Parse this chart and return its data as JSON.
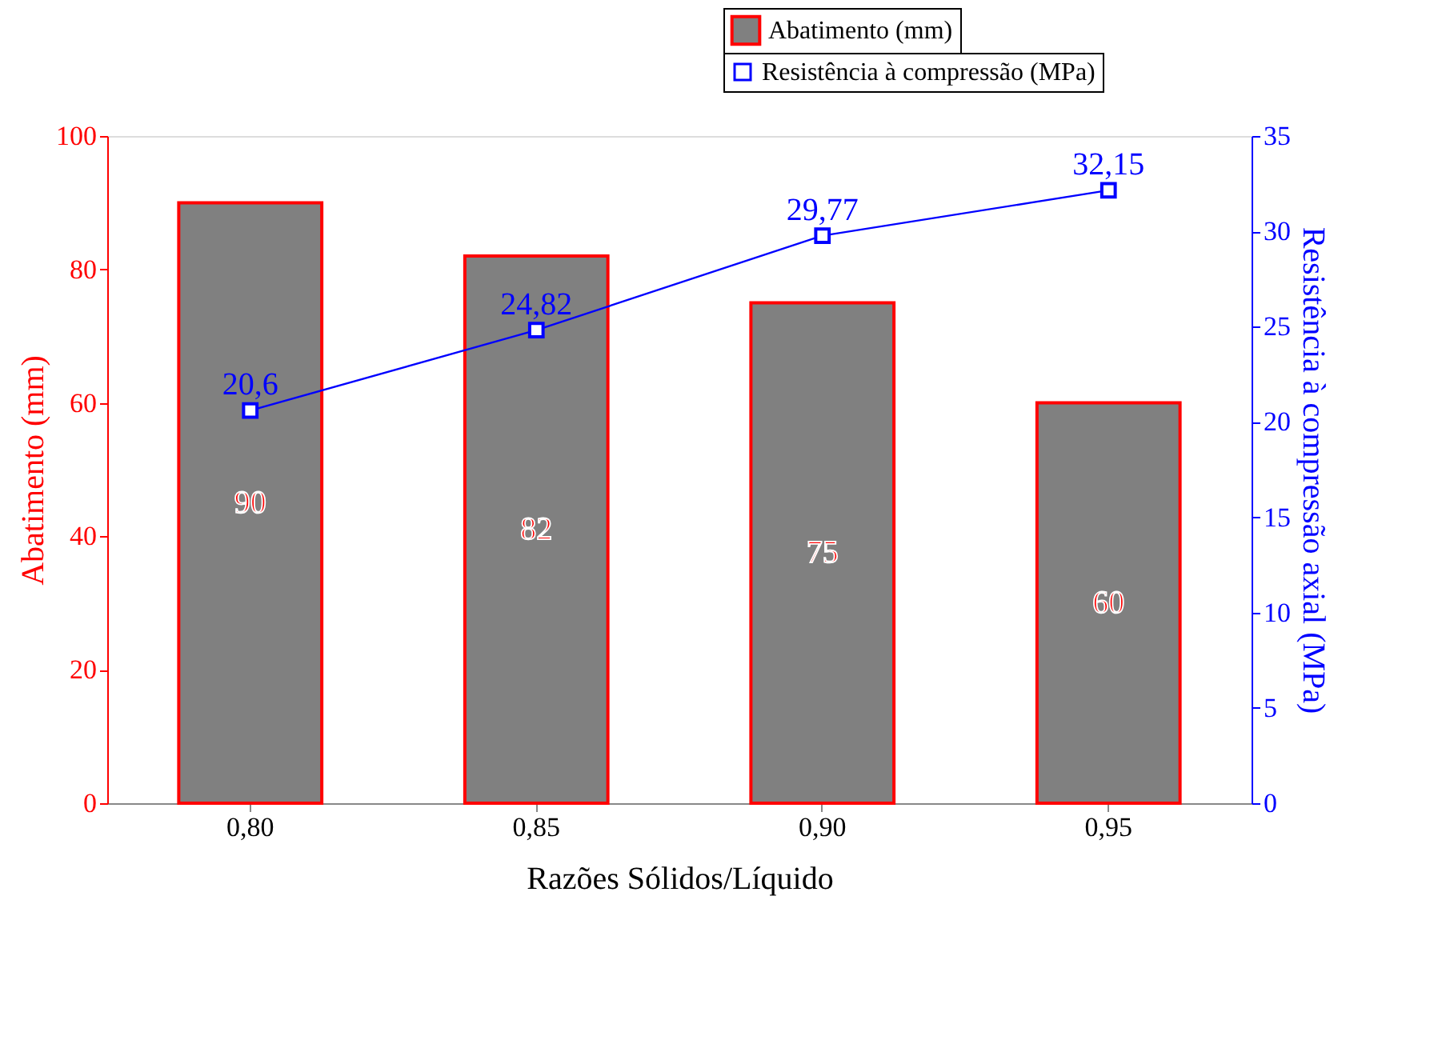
{
  "chart_data": {
    "type": "bar",
    "xlabel": "Razões Sólidos/Líquido",
    "ylabel": "Abatimento (mm)",
    "y2label": "Resistência à compressão axial (MPa)",
    "categories": [
      "0,80",
      "0,85",
      "0,90",
      "0,95"
    ],
    "series": [
      {
        "name": "Abatimento (mm)",
        "color": "#808080",
        "values": [
          90,
          82,
          75,
          60
        ],
        "value_labels": [
          "90",
          "82",
          "75",
          "60"
        ]
      },
      {
        "name": "Resistência à compressão (MPa)",
        "type": "line",
        "axis": "y2",
        "color": "#0000ff",
        "marker": "square",
        "values": [
          20.6,
          24.82,
          29.77,
          32.15
        ],
        "value_labels": [
          "20,6",
          "24,82",
          "29,77",
          "32,15"
        ]
      }
    ],
    "ylim": [
      0,
      100
    ],
    "yticks": [
      0,
      20,
      40,
      60,
      80,
      100
    ],
    "y2lim": [
      0,
      35
    ],
    "y2ticks": [
      0,
      5,
      10,
      15,
      20,
      25,
      30,
      35
    ],
    "grid": false,
    "legend": "top right"
  }
}
